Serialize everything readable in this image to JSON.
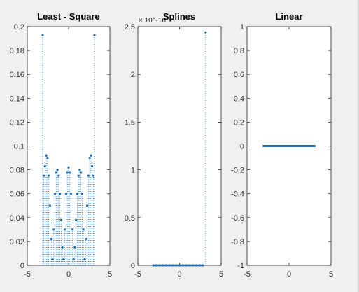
{
  "figure": {
    "background": "#f0f0f0",
    "axes_background": "#ffffff",
    "line_color": "#1f6fb2"
  },
  "chart_data": [
    {
      "type": "scatter",
      "title": "Least - Square",
      "xlabel": "",
      "ylabel": "",
      "xlim": [
        -5,
        5
      ],
      "ylim": [
        0,
        0.2
      ],
      "xticks": [
        -5,
        0,
        5
      ],
      "yticks": [
        0,
        0.02,
        0.04,
        0.06,
        0.08,
        0.1,
        0.12,
        0.14,
        0.16,
        0.18,
        0.2
      ],
      "ytick_labels": [
        "0",
        "0.02",
        "0.04",
        "0.06",
        "0.08",
        "0.1",
        "0.12",
        "0.14",
        "0.16",
        "0.18",
        "0.2"
      ],
      "grid": false,
      "style": "dotted stems with point markers",
      "series": [
        {
          "x": [
            -3.14,
            -3.0,
            -2.85,
            -2.7,
            -2.55,
            -2.4,
            -2.25,
            -2.1,
            -1.95,
            -1.8,
            -1.65,
            -1.5,
            -1.35,
            -1.2,
            -1.05,
            -0.9,
            -0.75,
            -0.6,
            -0.45,
            -0.3,
            -0.15,
            0.0,
            0.15,
            0.3,
            0.45,
            0.6,
            0.75,
            0.9,
            1.05,
            1.2,
            1.35,
            1.5,
            1.65,
            1.8,
            1.95,
            2.1,
            2.25,
            2.4,
            2.55,
            2.7,
            2.85,
            3.0,
            3.14
          ],
          "y": [
            0.193,
            0.075,
            0.083,
            0.092,
            0.09,
            0.075,
            0.05,
            0.022,
            0.005,
            0.03,
            0.06,
            0.078,
            0.08,
            0.075,
            0.06,
            0.038,
            0.015,
            0.005,
            0.03,
            0.06,
            0.078,
            0.082,
            0.078,
            0.06,
            0.03,
            0.005,
            0.015,
            0.038,
            0.06,
            0.075,
            0.08,
            0.078,
            0.06,
            0.03,
            0.005,
            0.022,
            0.05,
            0.075,
            0.09,
            0.092,
            0.083,
            0.075,
            0.193
          ]
        }
      ]
    },
    {
      "type": "scatter",
      "title": "Splines",
      "xlabel": "",
      "ylabel": "",
      "exponent_label": "× 10^-16",
      "xlim": [
        -5,
        5
      ],
      "ylim": [
        0,
        2.5
      ],
      "xticks": [
        -5,
        0,
        5
      ],
      "yticks": [
        0,
        0.5,
        1,
        1.5,
        2,
        2.5
      ],
      "ytick_labels": [
        "0",
        "0.5",
        "1",
        "1.5",
        "2",
        "2.5"
      ],
      "grid": false,
      "style": "dotted stems with point markers",
      "series": [
        {
          "x": [
            -3.14,
            -2.8,
            -2.4,
            -2.0,
            -1.6,
            -1.2,
            -0.8,
            -0.4,
            0.0,
            0.4,
            0.8,
            1.2,
            1.6,
            2.0,
            2.4,
            2.8,
            3.14
          ],
          "y": [
            0,
            0,
            0,
            0,
            0,
            0,
            0,
            0,
            0,
            0,
            0,
            0,
            0,
            0,
            0,
            0,
            2.44
          ]
        }
      ]
    },
    {
      "type": "line",
      "title": "Linear",
      "xlabel": "",
      "ylabel": "",
      "xlim": [
        -5,
        5
      ],
      "ylim": [
        -1,
        1
      ],
      "xticks": [
        -5,
        0,
        5
      ],
      "yticks": [
        -1,
        -0.8,
        -0.6,
        -0.4,
        -0.2,
        0,
        0.2,
        0.4,
        0.6,
        0.8,
        1
      ],
      "ytick_labels": [
        "-1",
        "-0.8",
        "-0.6",
        "-0.4",
        "-0.2",
        "0",
        "0.2",
        "0.4",
        "0.6",
        "0.8",
        "1"
      ],
      "grid": false,
      "style": "thick line",
      "series": [
        {
          "x": [
            -3.14,
            3.14
          ],
          "y": [
            0,
            0
          ]
        }
      ]
    }
  ]
}
